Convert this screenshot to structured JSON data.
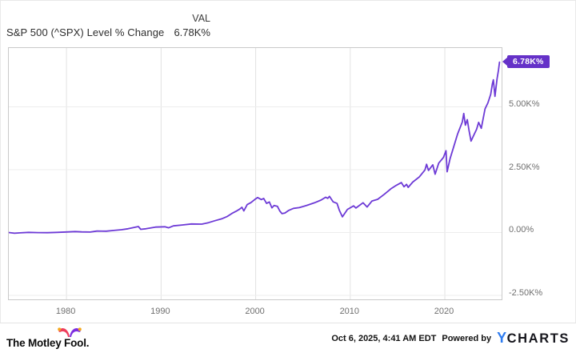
{
  "header": {
    "title": "S&P 500 (^SPX) Level % Change",
    "val_header": "VAL",
    "val_value": "6.78K%"
  },
  "badge": {
    "label": "6.78K%"
  },
  "footer": {
    "brand_wordmark": "The Motley Fool.",
    "timestamp": "Oct 6, 2025, 4:41 AM EDT",
    "powered_by": "Powered by",
    "ycharts_y": "Y",
    "ycharts_charts": "CHARTS"
  },
  "colors": {
    "line": "#6d3ad6",
    "badge_bg": "#6531c8",
    "badge_text": "#ffffff",
    "grid_vertical": "#e2e2e2",
    "grid_horizontal": "#ededed",
    "axis_text": "#6f6f6f",
    "ycharts_blue": "#2e7cf0",
    "hat_left": "#ee3d5c",
    "hat_right": "#7d2ee0",
    "hat_bells": "#f5a81c"
  },
  "chart_data": {
    "type": "line",
    "title": "S&P 500 (^SPX) Level % Change",
    "series_name": "S&P 500 (^SPX) Level % Change",
    "current_value_label": "6.78K%",
    "legend_position": "none",
    "grid": true,
    "x_axis": {
      "min": 1973.9,
      "max": 2026.0,
      "ticks": [
        1980,
        1990,
        2000,
        2010,
        2020
      ],
      "tick_labels": [
        "1980",
        "1990",
        "2000",
        "2010",
        "2020"
      ]
    },
    "y_axis": {
      "min": -2660,
      "max": 7340,
      "unit": "percent change",
      "ticks": [
        5000,
        2500,
        0,
        -2500
      ],
      "tick_labels": [
        "5.00K%",
        "2.50K%",
        "0.00%",
        "-2.50K%"
      ]
    },
    "points": [
      [
        1973.9,
        0
      ],
      [
        1974.5,
        -30
      ],
      [
        1975.1,
        -14
      ],
      [
        1976,
        6
      ],
      [
        1977,
        -4
      ],
      [
        1978,
        -8
      ],
      [
        1979,
        6
      ],
      [
        1980,
        22
      ],
      [
        1980.9,
        38
      ],
      [
        1981.6,
        24
      ],
      [
        1982.5,
        18
      ],
      [
        1983.2,
        58
      ],
      [
        1984.2,
        52
      ],
      [
        1985,
        82
      ],
      [
        1985.8,
        110
      ],
      [
        1986.5,
        150
      ],
      [
        1987.6,
        238
      ],
      [
        1987.85,
        128
      ],
      [
        1988.4,
        148
      ],
      [
        1989.4,
        215
      ],
      [
        1990.4,
        228
      ],
      [
        1990.8,
        188
      ],
      [
        1991.3,
        265
      ],
      [
        1992.2,
        300
      ],
      [
        1993.2,
        340
      ],
      [
        1994.3,
        335
      ],
      [
        1995,
        390
      ],
      [
        1995.7,
        470
      ],
      [
        1996.4,
        545
      ],
      [
        1997,
        640
      ],
      [
        1997.5,
        760
      ],
      [
        1997.9,
        840
      ],
      [
        1998.3,
        930
      ],
      [
        1998.55,
        1005
      ],
      [
        1998.75,
        860
      ],
      [
        1999.1,
        1110
      ],
      [
        1999.5,
        1190
      ],
      [
        1999.9,
        1310
      ],
      [
        2000.2,
        1390
      ],
      [
        2000.6,
        1310
      ],
      [
        2000.85,
        1355
      ],
      [
        2001.15,
        1160
      ],
      [
        2001.45,
        1215
      ],
      [
        2001.72,
        980
      ],
      [
        2001.95,
        1075
      ],
      [
        2002.3,
        1040
      ],
      [
        2002.55,
        860
      ],
      [
        2002.78,
        750
      ],
      [
        2003.1,
        775
      ],
      [
        2003.5,
        880
      ],
      [
        2004,
        960
      ],
      [
        2004.6,
        990
      ],
      [
        2005.4,
        1080
      ],
      [
        2006.2,
        1180
      ],
      [
        2006.9,
        1290
      ],
      [
        2007.4,
        1405
      ],
      [
        2007.62,
        1360
      ],
      [
        2007.8,
        1440
      ],
      [
        2008.2,
        1220
      ],
      [
        2008.6,
        1160
      ],
      [
        2008.85,
        880
      ],
      [
        2009.17,
        625
      ],
      [
        2009.7,
        920
      ],
      [
        2010.35,
        1060
      ],
      [
        2010.6,
        975
      ],
      [
        2011.35,
        1185
      ],
      [
        2011.78,
        1015
      ],
      [
        2012.3,
        1255
      ],
      [
        2012.9,
        1320
      ],
      [
        2013.6,
        1520
      ],
      [
        2014.3,
        1740
      ],
      [
        2014.9,
        1885
      ],
      [
        2015.4,
        1985
      ],
      [
        2015.68,
        1820
      ],
      [
        2015.95,
        1915
      ],
      [
        2016.12,
        1795
      ],
      [
        2016.6,
        2005
      ],
      [
        2017.3,
        2210
      ],
      [
        2017.9,
        2490
      ],
      [
        2018.07,
        2715
      ],
      [
        2018.27,
        2470
      ],
      [
        2018.73,
        2695
      ],
      [
        2018.97,
        2320
      ],
      [
        2019.35,
        2760
      ],
      [
        2019.85,
        2985
      ],
      [
        2020.12,
        3255
      ],
      [
        2020.24,
        2415
      ],
      [
        2020.55,
        2940
      ],
      [
        2020.95,
        3430
      ],
      [
        2021.35,
        3920
      ],
      [
        2021.85,
        4400
      ],
      [
        2022.0,
        4735
      ],
      [
        2022.17,
        4270
      ],
      [
        2022.37,
        4490
      ],
      [
        2022.55,
        4080
      ],
      [
        2022.77,
        3635
      ],
      [
        2023.1,
        3905
      ],
      [
        2023.35,
        4105
      ],
      [
        2023.57,
        4380
      ],
      [
        2023.85,
        4145
      ],
      [
        2024.25,
        4920
      ],
      [
        2024.55,
        5160
      ],
      [
        2024.85,
        5500
      ],
      [
        2025.02,
        5905
      ],
      [
        2025.13,
        6075
      ],
      [
        2025.3,
        5415
      ],
      [
        2025.52,
        6110
      ],
      [
        2025.67,
        6460
      ],
      [
        2025.78,
        6780
      ]
    ]
  }
}
